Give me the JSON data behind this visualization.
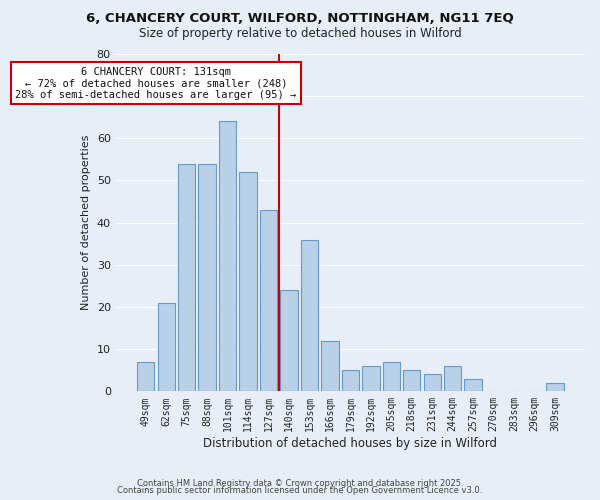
{
  "title": "6, CHANCERY COURT, WILFORD, NOTTINGHAM, NG11 7EQ",
  "subtitle": "Size of property relative to detached houses in Wilford",
  "xlabel": "Distribution of detached houses by size in Wilford",
  "ylabel": "Number of detached properties",
  "bar_color": "#b8d0e8",
  "bar_edge_color": "#6699cc",
  "background_color": "#e8eef8",
  "grid_color": "#ffffff",
  "categories": [
    "49sqm",
    "62sqm",
    "75sqm",
    "88sqm",
    "101sqm",
    "114sqm",
    "127sqm",
    "140sqm",
    "153sqm",
    "166sqm",
    "179sqm",
    "192sqm",
    "205sqm",
    "218sqm",
    "231sqm",
    "244sqm",
    "257sqm",
    "270sqm",
    "283sqm",
    "296sqm",
    "309sqm"
  ],
  "values": [
    7,
    21,
    54,
    54,
    64,
    52,
    43,
    24,
    36,
    12,
    5,
    6,
    7,
    5,
    4,
    6,
    3,
    0,
    0,
    0,
    2
  ],
  "red_line_index": 7,
  "property_sqm": 131,
  "annotation_title": "6 CHANCERY COURT: 131sqm",
  "annotation_line1": "← 72% of detached houses are smaller (248)",
  "annotation_line2": "28% of semi-detached houses are larger (95) →",
  "ylim": [
    0,
    80
  ],
  "yticks": [
    0,
    10,
    20,
    30,
    40,
    50,
    60,
    70,
    80
  ],
  "footnote1": "Contains HM Land Registry data © Crown copyright and database right 2025.",
  "footnote2": "Contains public sector information licensed under the Open Government Licence v3.0."
}
